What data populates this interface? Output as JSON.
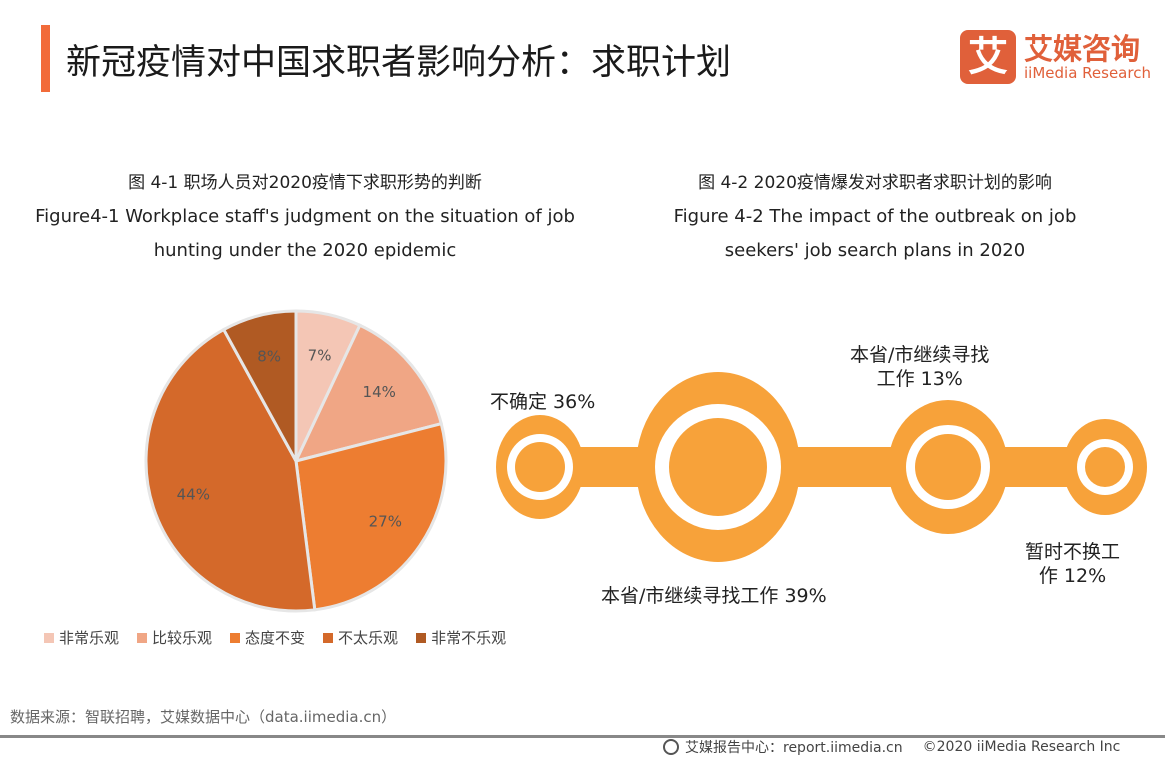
{
  "header": {
    "title": "新冠疫情对中国求职者影响分析：求职计划"
  },
  "logo": {
    "mark": "艾",
    "cn": "艾媒咨询",
    "en": "iiMedia Research"
  },
  "figure1": {
    "caption_cn": "图 4-1 职场人员对2020疫情下求职形势的判断",
    "caption_en_line1": "Figure4-1 Workplace staff's judgment on the situation of job",
    "caption_en_line2": "hunting under the 2020 epidemic"
  },
  "figure2": {
    "caption_cn": "图 4-2 2020疫情爆发对求职者求职计划的影响",
    "caption_en_line1": "Figure 4-2  The impact of the outbreak on job",
    "caption_en_line2": "seekers' job search plans in 2020",
    "items": [
      {
        "label_1": "不确定 36%"
      },
      {
        "label_1": "本省/市继续寻找工作 39%"
      },
      {
        "label_1": "本省/市继续寻找",
        "label_2": "工作 13%"
      },
      {
        "label_1": "暂时不换工",
        "label_2": "作 12%"
      }
    ],
    "color": "#f7a23a"
  },
  "chart_data": {
    "type": "pie",
    "start": "top, clockwise",
    "categories": [
      "非常乐观",
      "比较乐观",
      "态度不变",
      "不太乐观",
      "非常不乐观"
    ],
    "values": [
      7,
      14,
      27,
      44,
      8
    ],
    "labels": [
      "7%",
      "14%",
      "27%",
      "44%",
      "8%"
    ],
    "colors": [
      "#f4c6b5",
      "#f0a685",
      "#ed7d31",
      "#d4692a",
      "#b05a23"
    ],
    "legend": "bottom"
  },
  "source": "数据来源：智联招聘，艾媒数据中心（data.iimedia.cn）",
  "footer": {
    "report": "艾媒报告中心：report.iimedia.cn",
    "copyright": "©2020  iiMedia Research  Inc"
  }
}
